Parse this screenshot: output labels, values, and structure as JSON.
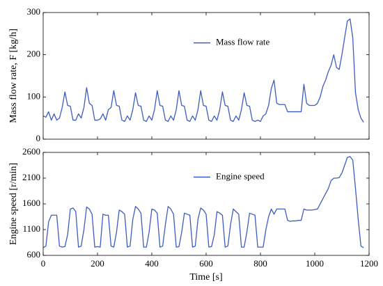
{
  "chart_data": [
    {
      "type": "line",
      "ylabel": "Mass flow rate, F [kg/h]",
      "x": [
        0,
        10,
        20,
        30,
        40,
        50,
        60,
        70,
        80,
        90,
        100,
        110,
        120,
        130,
        140,
        150,
        160,
        170,
        180,
        190,
        200,
        210,
        220,
        230,
        240,
        250,
        260,
        270,
        280,
        290,
        300,
        310,
        320,
        330,
        340,
        350,
        360,
        370,
        380,
        390,
        400,
        410,
        420,
        430,
        440,
        450,
        460,
        470,
        480,
        490,
        500,
        510,
        520,
        530,
        540,
        550,
        560,
        570,
        580,
        590,
        600,
        610,
        620,
        630,
        640,
        650,
        660,
        670,
        680,
        690,
        700,
        710,
        720,
        730,
        740,
        750,
        760,
        770,
        780,
        790,
        800,
        810,
        820,
        830,
        840,
        850,
        860,
        870,
        880,
        890,
        900,
        910,
        920,
        930,
        940,
        950,
        960,
        970,
        980,
        990,
        1000,
        1010,
        1020,
        1030,
        1040,
        1050,
        1060,
        1070,
        1080,
        1090,
        1100,
        1110,
        1120,
        1130,
        1140,
        1150,
        1160,
        1170,
        1180
      ],
      "series": [
        {
          "name": "Mass flow rate",
          "color": "#3d5cc0",
          "values": [
            55,
            52,
            65,
            45,
            60,
            45,
            50,
            75,
            112,
            80,
            78,
            45,
            45,
            60,
            50,
            75,
            122,
            85,
            80,
            45,
            45,
            48,
            60,
            45,
            70,
            75,
            115,
            80,
            78,
            45,
            42,
            55,
            45,
            70,
            110,
            80,
            78,
            45,
            42,
            55,
            45,
            70,
            115,
            80,
            78,
            45,
            42,
            55,
            45,
            70,
            115,
            80,
            78,
            45,
            42,
            55,
            45,
            70,
            115,
            80,
            78,
            45,
            42,
            55,
            45,
            70,
            112,
            80,
            78,
            45,
            42,
            55,
            45,
            70,
            110,
            80,
            78,
            45,
            42,
            45,
            42,
            55,
            60,
            80,
            120,
            140,
            85,
            82,
            82,
            82,
            65,
            65,
            65,
            65,
            65,
            65,
            130,
            85,
            80,
            80,
            80,
            85,
            100,
            125,
            140,
            160,
            175,
            200,
            170,
            165,
            200,
            240,
            280,
            285,
            240,
            110,
            70,
            50,
            40
          ]
        }
      ],
      "xlim": [
        0,
        1200
      ],
      "xticks": [
        0,
        200,
        400,
        600,
        800,
        1000,
        1200
      ],
      "ylim": [
        0,
        300
      ],
      "yticks": [
        0,
        100,
        200,
        300
      ]
    },
    {
      "type": "line",
      "ylabel": "Engine speed [r/min]",
      "xlabel": "Time [s]",
      "x": [
        0,
        10,
        20,
        30,
        40,
        50,
        60,
        70,
        80,
        90,
        100,
        110,
        120,
        130,
        140,
        150,
        160,
        170,
        180,
        190,
        200,
        210,
        220,
        230,
        240,
        250,
        260,
        270,
        280,
        290,
        300,
        310,
        320,
        330,
        340,
        350,
        360,
        370,
        380,
        390,
        400,
        410,
        420,
        430,
        440,
        450,
        460,
        470,
        480,
        490,
        500,
        510,
        520,
        530,
        540,
        550,
        560,
        570,
        580,
        590,
        600,
        610,
        620,
        630,
        640,
        650,
        660,
        670,
        680,
        690,
        700,
        710,
        720,
        730,
        740,
        750,
        760,
        770,
        780,
        790,
        800,
        810,
        820,
        830,
        840,
        850,
        860,
        870,
        880,
        890,
        900,
        910,
        920,
        930,
        940,
        950,
        960,
        970,
        980,
        990,
        1000,
        1010,
        1020,
        1030,
        1040,
        1050,
        1060,
        1070,
        1080,
        1090,
        1100,
        1110,
        1120,
        1130,
        1140,
        1150,
        1160,
        1170,
        1180
      ],
      "series": [
        {
          "name": "Engine speed",
          "color": "#3d5cc0",
          "values": [
            750,
            780,
            1250,
            1380,
            1380,
            1380,
            780,
            760,
            770,
            1000,
            1500,
            1520,
            1450,
            760,
            780,
            1100,
            1540,
            1500,
            1400,
            760,
            770,
            760,
            1400,
            1380,
            1380,
            780,
            760,
            1050,
            1480,
            1450,
            1400,
            760,
            780,
            1300,
            1550,
            1500,
            1420,
            760,
            760,
            1050,
            1500,
            1480,
            1420,
            760,
            780,
            1200,
            1550,
            1500,
            1400,
            760,
            770,
            1050,
            1420,
            1400,
            1380,
            760,
            780,
            1300,
            1520,
            1480,
            1400,
            760,
            770,
            1000,
            1450,
            1420,
            1380,
            760,
            780,
            1200,
            1500,
            1450,
            1400,
            760,
            760,
            1050,
            1420,
            1400,
            1380,
            760,
            760,
            760,
            1100,
            1350,
            1500,
            1400,
            1500,
            1500,
            1500,
            1500,
            1280,
            1260,
            1270,
            1270,
            1280,
            1280,
            1500,
            1480,
            1480,
            1480,
            1490,
            1500,
            1600,
            1700,
            1800,
            1900,
            2050,
            2100,
            2100,
            2110,
            2200,
            2350,
            2500,
            2520,
            2450,
            1900,
            1300,
            780,
            750
          ]
        }
      ],
      "xlim": [
        0,
        1200
      ],
      "xticks": [
        0,
        200,
        400,
        600,
        800,
        1000,
        1200
      ],
      "ylim": [
        600,
        2600
      ],
      "yticks": [
        600,
        1100,
        1600,
        2100,
        2600
      ]
    }
  ]
}
